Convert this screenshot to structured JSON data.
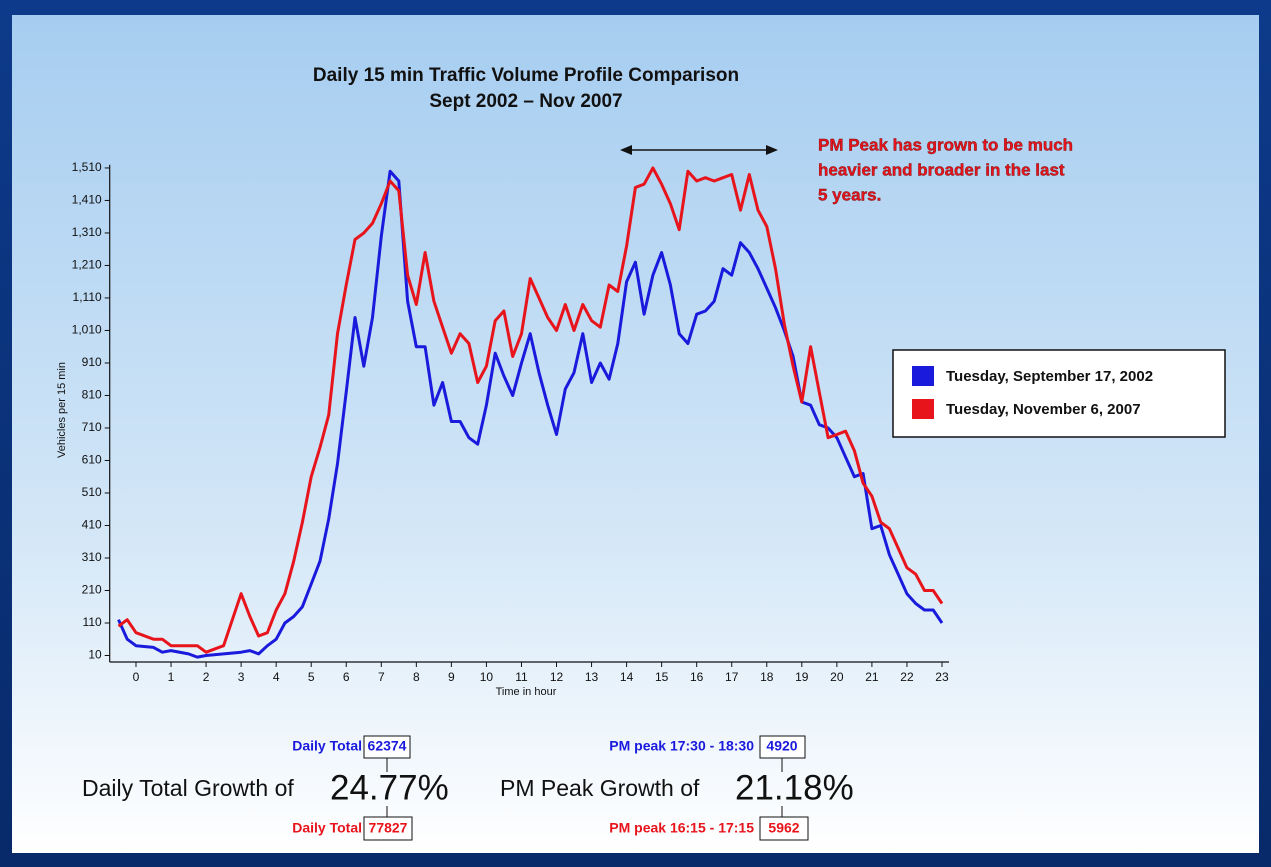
{
  "chart_data": {
    "type": "line",
    "title": "Daily 15 min Traffic Volume Profile Comparison",
    "subtitle": "Sept 2002 – Nov 2007",
    "y_label": "Vehicles per 15 min",
    "x_label": "Time in hour",
    "annotation": [
      "PM Peak has grown to be much",
      "heavier and broader in the last",
      "5 years."
    ],
    "x": [
      -0.5,
      -0.25,
      0,
      0.5,
      0.75,
      1,
      1.5,
      1.75,
      2,
      2.5,
      3,
      3.25,
      3.5,
      3.75,
      4,
      4.25,
      4.5,
      4.75,
      5,
      5.25,
      5.5,
      5.75,
      6,
      6.25,
      6.5,
      6.75,
      7,
      7.25,
      7.5,
      7.75,
      8,
      8.25,
      8.5,
      8.75,
      9,
      9.25,
      9.5,
      9.75,
      10,
      10.25,
      10.5,
      10.75,
      11,
      11.25,
      11.5,
      11.75,
      12,
      12.25,
      12.5,
      12.75,
      13,
      13.25,
      13.5,
      13.75,
      14,
      14.25,
      14.5,
      14.75,
      15,
      15.25,
      15.5,
      15.75,
      16,
      16.25,
      16.5,
      16.75,
      17,
      17.25,
      17.5,
      17.75,
      18,
      18.25,
      18.5,
      18.75,
      19,
      19.25,
      19.5,
      19.75,
      20,
      20.25,
      20.5,
      20.75,
      21,
      21.25,
      21.5,
      21.75,
      22,
      22.25,
      22.5,
      22.75,
      23
    ],
    "series": [
      {
        "name": "Tuesday, September 17, 2002",
        "color": "#1a1adc",
        "values": [
          120,
          60,
          40,
          35,
          20,
          25,
          15,
          5,
          10,
          15,
          20,
          25,
          15,
          40,
          60,
          110,
          130,
          160,
          230,
          300,
          430,
          600,
          820,
          1050,
          900,
          1050,
          1300,
          1500,
          1470,
          1100,
          960,
          960,
          780,
          850,
          730,
          730,
          680,
          660,
          780,
          940,
          870,
          810,
          910,
          1000,
          880,
          780,
          690,
          830,
          880,
          1000,
          850,
          910,
          860,
          970,
          1160,
          1220,
          1060,
          1180,
          1250,
          1150,
          1000,
          970,
          1060,
          1070,
          1100,
          1200,
          1180,
          1280,
          1250,
          1200,
          1140,
          1080,
          1010,
          930,
          790,
          780,
          720,
          710,
          680,
          620,
          560,
          570,
          400,
          410,
          320,
          260,
          200,
          170,
          150,
          150,
          110
        ]
      },
      {
        "name": "Tuesday, November 6, 2007",
        "color": "#e8141c",
        "values": [
          100,
          120,
          80,
          60,
          60,
          40,
          40,
          40,
          20,
          40,
          200,
          130,
          70,
          80,
          150,
          200,
          300,
          420,
          560,
          650,
          750,
          1000,
          1150,
          1290,
          1310,
          1340,
          1400,
          1470,
          1440,
          1180,
          1090,
          1250,
          1100,
          1020,
          940,
          1000,
          970,
          850,
          900,
          1040,
          1070,
          930,
          1000,
          1170,
          1110,
          1050,
          1010,
          1090,
          1010,
          1090,
          1040,
          1020,
          1150,
          1130,
          1270,
          1450,
          1460,
          1510,
          1460,
          1400,
          1320,
          1500,
          1470,
          1480,
          1470,
          1480,
          1490,
          1380,
          1490,
          1380,
          1330,
          1200,
          1030,
          900,
          790,
          960,
          820,
          680,
          690,
          700,
          640,
          540,
          500,
          420,
          400,
          340,
          280,
          260,
          210,
          210,
          170
        ]
      }
    ],
    "xlim": [
      -0.75,
      23.2
    ],
    "ylim": [
      -10,
      1520
    ],
    "xticks": [
      0,
      1,
      2,
      3,
      4,
      5,
      6,
      7,
      8,
      9,
      10,
      11,
      12,
      13,
      14,
      15,
      16,
      17,
      18,
      19,
      20,
      21,
      22,
      23
    ],
    "yticks": [
      10,
      110,
      210,
      310,
      410,
      510,
      610,
      710,
      810,
      910,
      {
        "value": 1010,
        "label": "1,010"
      },
      {
        "value": 1110,
        "label": "1,110"
      },
      {
        "value": 1210,
        "label": "1,210"
      },
      {
        "value": 1310,
        "label": "1,310"
      },
      {
        "value": 1410,
        "label": "1,410"
      },
      {
        "value": 1510,
        "label": "1,510"
      }
    ],
    "legend": "right"
  },
  "summary": {
    "daily_total_2002_label": "Daily Total",
    "daily_total_2002": "62374",
    "daily_growth_label": "Daily Total Growth of",
    "daily_growth": "24.77%",
    "daily_total_2007_label": "Daily Total",
    "daily_total_2007": "77827",
    "pm_peak_2002_label": "PM peak 17:30 - 18:30",
    "pm_peak_2002": "4920",
    "pm_growth_label": "PM Peak Growth of",
    "pm_growth": "21.18%",
    "pm_peak_2007_label": "PM peak 16:15 - 17:15",
    "pm_peak_2007": "5962"
  }
}
